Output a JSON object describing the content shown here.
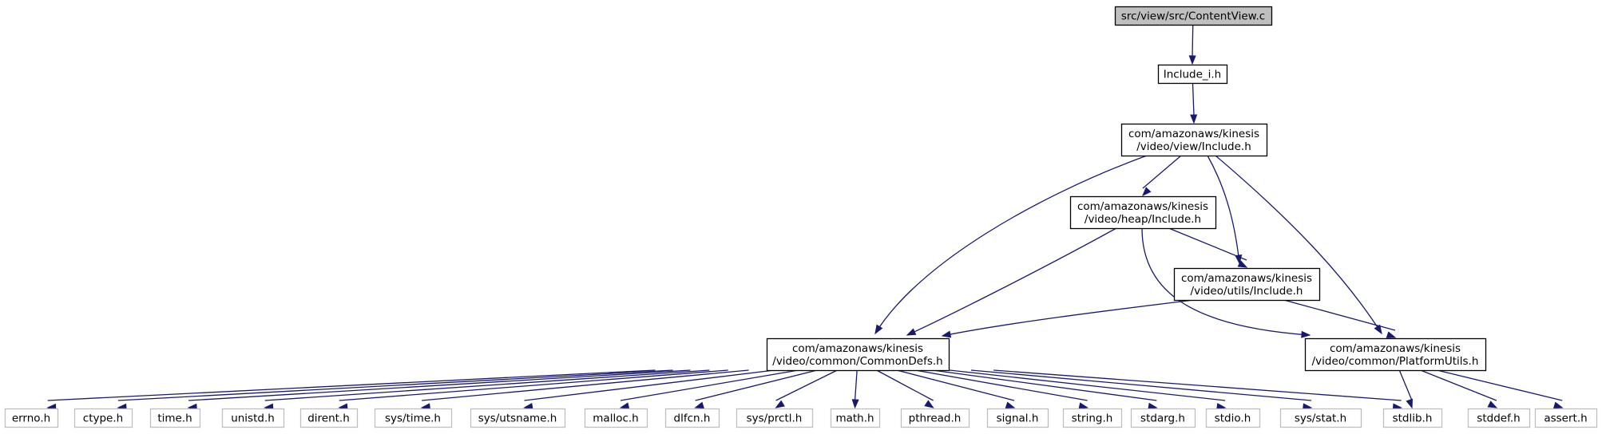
{
  "diagram": {
    "colors": {
      "edge": "#191970",
      "root_fill": "#bfbfbf",
      "node_border": "#000000",
      "external_border": "#bfbfbf",
      "background": "#ffffff"
    },
    "nodes": [
      {
        "id": "root",
        "kind": "root",
        "lines": [
          "src/view/src/ContentView.c"
        ]
      },
      {
        "id": "include_i",
        "kind": "internal",
        "lines": [
          "Include_i.h"
        ]
      },
      {
        "id": "view_include",
        "kind": "internal",
        "lines": [
          "com/amazonaws/kinesis",
          "/video/view/Include.h"
        ]
      },
      {
        "id": "heap_include",
        "kind": "internal",
        "lines": [
          "com/amazonaws/kinesis",
          "/video/heap/Include.h"
        ]
      },
      {
        "id": "utils_include",
        "kind": "internal",
        "lines": [
          "com/amazonaws/kinesis",
          "/video/utils/Include.h"
        ]
      },
      {
        "id": "commondefs",
        "kind": "internal",
        "lines": [
          "com/amazonaws/kinesis",
          "/video/common/CommonDefs.h"
        ]
      },
      {
        "id": "platformutils",
        "kind": "internal",
        "lines": [
          "com/amazonaws/kinesis",
          "/video/common/PlatformUtils.h"
        ]
      },
      {
        "id": "errno",
        "kind": "external",
        "lines": [
          "errno.h"
        ]
      },
      {
        "id": "ctype",
        "kind": "external",
        "lines": [
          "ctype.h"
        ]
      },
      {
        "id": "time",
        "kind": "external",
        "lines": [
          "time.h"
        ]
      },
      {
        "id": "unistd",
        "kind": "external",
        "lines": [
          "unistd.h"
        ]
      },
      {
        "id": "dirent",
        "kind": "external",
        "lines": [
          "dirent.h"
        ]
      },
      {
        "id": "systime",
        "kind": "external",
        "lines": [
          "sys/time.h"
        ]
      },
      {
        "id": "sysutsname",
        "kind": "external",
        "lines": [
          "sys/utsname.h"
        ]
      },
      {
        "id": "malloc",
        "kind": "external",
        "lines": [
          "malloc.h"
        ]
      },
      {
        "id": "dlfcn",
        "kind": "external",
        "lines": [
          "dlfcn.h"
        ]
      },
      {
        "id": "sysprctl",
        "kind": "external",
        "lines": [
          "sys/prctl.h"
        ]
      },
      {
        "id": "math",
        "kind": "external",
        "lines": [
          "math.h"
        ]
      },
      {
        "id": "pthread",
        "kind": "external",
        "lines": [
          "pthread.h"
        ]
      },
      {
        "id": "signal",
        "kind": "external",
        "lines": [
          "signal.h"
        ]
      },
      {
        "id": "string",
        "kind": "external",
        "lines": [
          "string.h"
        ]
      },
      {
        "id": "stdarg",
        "kind": "external",
        "lines": [
          "stdarg.h"
        ]
      },
      {
        "id": "stdio",
        "kind": "external",
        "lines": [
          "stdio.h"
        ]
      },
      {
        "id": "sysstat",
        "kind": "external",
        "lines": [
          "sys/stat.h"
        ]
      },
      {
        "id": "stdlib",
        "kind": "external",
        "lines": [
          "stdlib.h"
        ]
      },
      {
        "id": "stddef",
        "kind": "external",
        "lines": [
          "stddef.h"
        ]
      },
      {
        "id": "assert",
        "kind": "external",
        "lines": [
          "assert.h"
        ]
      }
    ],
    "edges": [
      [
        "root",
        "include_i"
      ],
      [
        "include_i",
        "view_include"
      ],
      [
        "view_include",
        "heap_include"
      ],
      [
        "view_include",
        "commondefs"
      ],
      [
        "view_include",
        "utils_include"
      ],
      [
        "view_include",
        "platformutils"
      ],
      [
        "heap_include",
        "utils_include"
      ],
      [
        "heap_include",
        "commondefs"
      ],
      [
        "heap_include",
        "platformutils"
      ],
      [
        "utils_include",
        "commondefs"
      ],
      [
        "utils_include",
        "platformutils"
      ],
      [
        "commondefs",
        "errno"
      ],
      [
        "commondefs",
        "ctype"
      ],
      [
        "commondefs",
        "time"
      ],
      [
        "commondefs",
        "unistd"
      ],
      [
        "commondefs",
        "dirent"
      ],
      [
        "commondefs",
        "systime"
      ],
      [
        "commondefs",
        "sysutsname"
      ],
      [
        "commondefs",
        "malloc"
      ],
      [
        "commondefs",
        "dlfcn"
      ],
      [
        "commondefs",
        "sysprctl"
      ],
      [
        "commondefs",
        "math"
      ],
      [
        "commondefs",
        "pthread"
      ],
      [
        "commondefs",
        "signal"
      ],
      [
        "commondefs",
        "string"
      ],
      [
        "commondefs",
        "stdarg"
      ],
      [
        "commondefs",
        "stdio"
      ],
      [
        "commondefs",
        "sysstat"
      ],
      [
        "commondefs",
        "stdlib"
      ],
      [
        "platformutils",
        "stdlib"
      ],
      [
        "platformutils",
        "stddef"
      ],
      [
        "platformutils",
        "assert"
      ]
    ]
  }
}
